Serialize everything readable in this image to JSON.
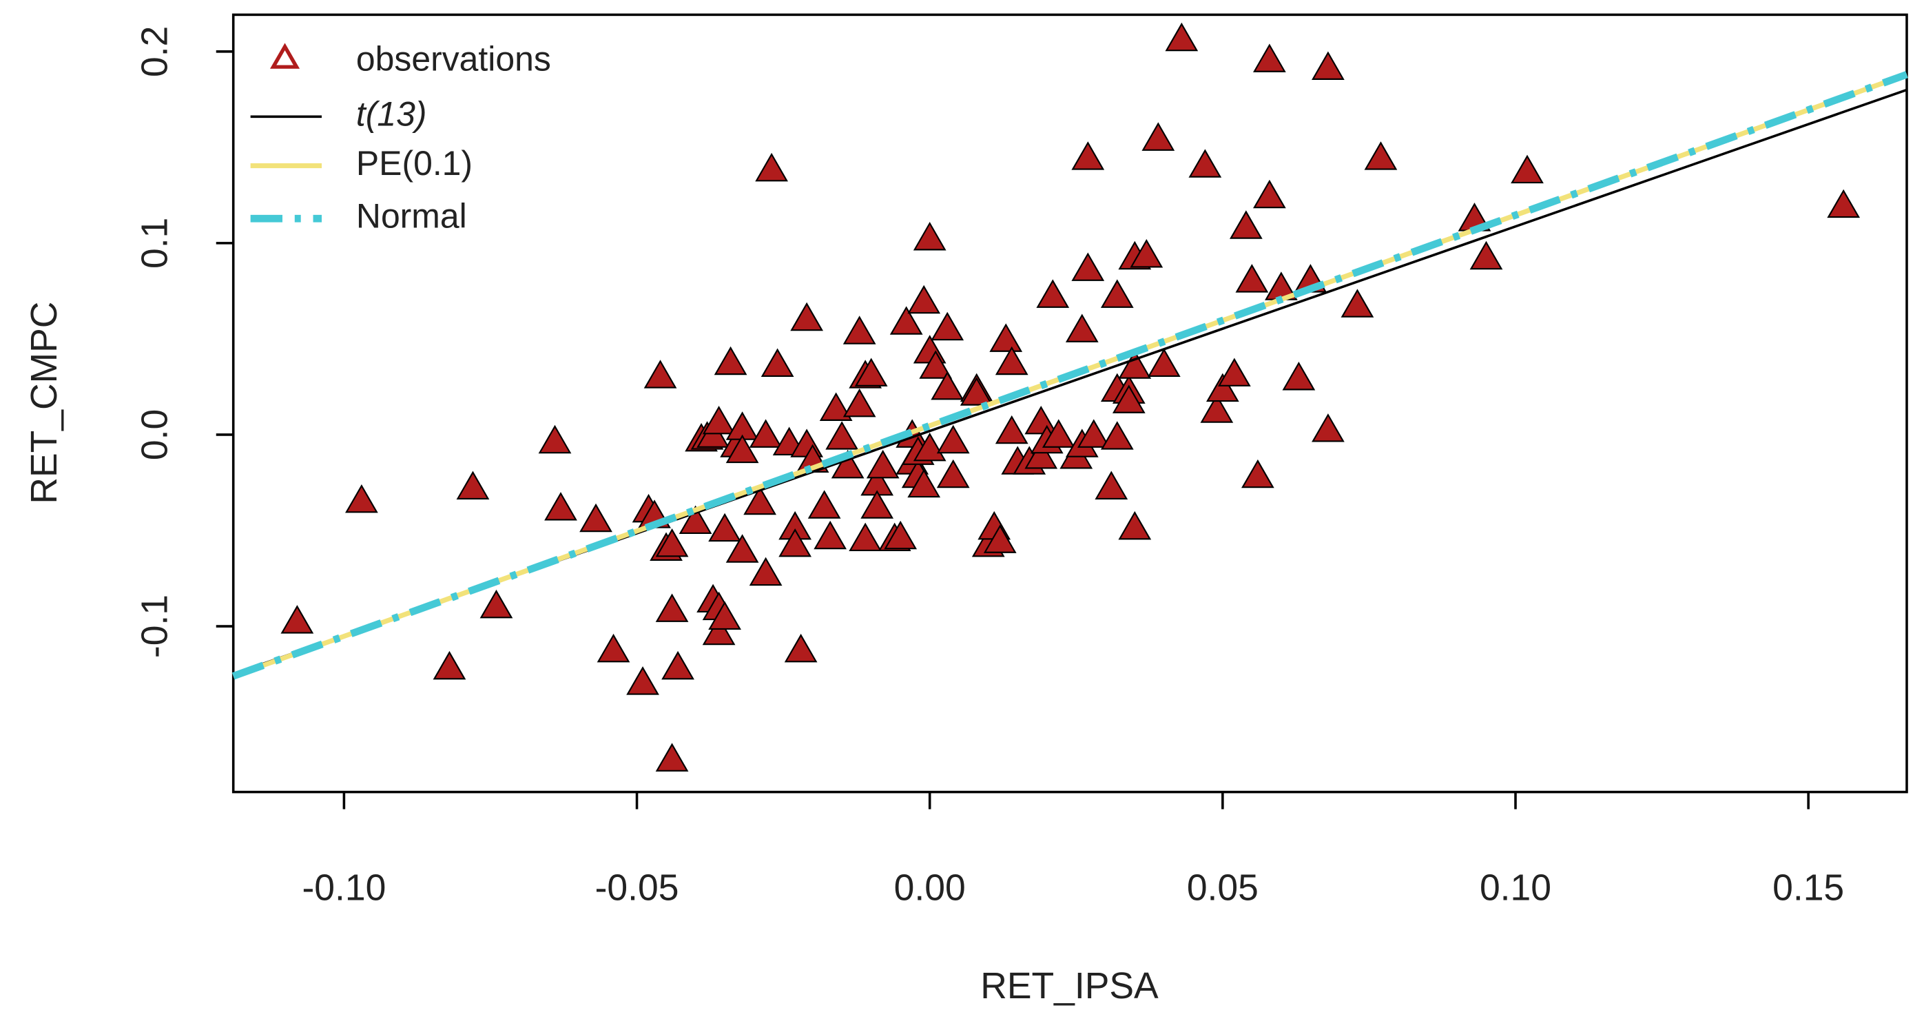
{
  "chart_data": {
    "type": "scatter",
    "xlabel": "RET_IPSA",
    "ylabel": "RET_CMPC",
    "xlim": [
      -0.1189,
      0.1668
    ],
    "ylim": [
      -0.1865,
      0.2192
    ],
    "xticks": [
      {
        "value": -0.1,
        "label": "-0.10"
      },
      {
        "value": -0.05,
        "label": "-0.05"
      },
      {
        "value": 0,
        "label": "0.00"
      },
      0.05,
      {
        "value": 0.1,
        "label": "0.10"
      },
      0.15
    ],
    "yticks": [
      -0.1,
      {
        "value": 0,
        "label": "0.0"
      },
      0.1,
      0.2
    ],
    "legend": "top-left",
    "series": [
      {
        "name": "observations",
        "type": "scatter",
        "color": "#b01c1c",
        "x": [
          -0.108,
          -0.097,
          -0.082,
          -0.078,
          -0.074,
          -0.064,
          -0.063,
          -0.057,
          -0.054,
          -0.049,
          -0.046,
          -0.048,
          -0.047,
          -0.045,
          -0.044,
          -0.044,
          -0.043,
          -0.044,
          -0.04,
          -0.039,
          -0.038,
          -0.037,
          -0.036,
          -0.036,
          -0.035,
          -0.037,
          -0.036,
          -0.035,
          -0.034,
          -0.033,
          -0.032,
          -0.032,
          -0.032,
          -0.028,
          -0.028,
          -0.027,
          -0.029,
          -0.026,
          -0.024,
          -0.023,
          -0.023,
          -0.022,
          -0.021,
          -0.021,
          -0.02,
          -0.018,
          -0.017,
          -0.016,
          -0.015,
          -0.014,
          -0.012,
          -0.011,
          -0.012,
          -0.011,
          -0.01,
          -0.009,
          -0.009,
          -0.008,
          -0.006,
          -0.005,
          -0.004,
          -0.003,
          -0.003,
          -0.002,
          -0.001,
          -0.002,
          -0.001,
          0.0,
          0.0,
          0.0,
          0.001,
          0.003,
          0.003,
          0.004,
          0.004,
          0.008,
          0.008,
          0.01,
          0.011,
          0.012,
          0.013,
          0.014,
          0.014,
          0.015,
          0.017,
          0.019,
          0.019,
          0.02,
          0.021,
          0.022,
          0.025,
          0.026,
          0.026,
          0.027,
          0.027,
          0.028,
          0.032,
          0.032,
          0.031,
          0.032,
          0.034,
          0.034,
          0.035,
          0.035,
          0.035,
          0.037,
          0.039,
          0.04,
          0.043,
          0.047,
          0.049,
          0.05,
          0.052,
          0.054,
          0.055,
          0.056,
          0.058,
          0.058,
          0.06,
          0.063,
          0.065,
          0.068,
          0.068,
          0.073,
          0.077,
          0.093,
          0.095,
          0.102,
          0.156
        ],
        "values": [
          -0.098,
          -0.035,
          -0.122,
          -0.028,
          -0.09,
          -0.004,
          -0.039,
          -0.045,
          -0.113,
          -0.13,
          0.03,
          -0.04,
          -0.043,
          -0.06,
          -0.058,
          -0.092,
          -0.122,
          -0.17,
          -0.046,
          -0.003,
          -0.002,
          -0.087,
          -0.091,
          -0.104,
          -0.096,
          -0.001,
          0.006,
          -0.05,
          0.037,
          -0.006,
          0.003,
          -0.009,
          -0.061,
          -0.001,
          -0.073,
          0.138,
          -0.036,
          0.036,
          -0.005,
          -0.049,
          -0.058,
          -0.113,
          -0.006,
          0.06,
          -0.014,
          -0.038,
          -0.054,
          0.013,
          -0.002,
          -0.017,
          0.053,
          0.03,
          0.015,
          -0.055,
          0.031,
          -0.026,
          -0.038,
          -0.017,
          -0.055,
          -0.054,
          0.058,
          -0.001,
          -0.015,
          -0.022,
          -0.027,
          -0.01,
          0.069,
          -0.008,
          0.043,
          0.102,
          0.035,
          0.055,
          0.024,
          -0.022,
          -0.004,
          0.023,
          0.021,
          -0.058,
          -0.049,
          -0.056,
          0.049,
          0.037,
          0.001,
          -0.015,
          -0.015,
          -0.012,
          0.006,
          -0.004,
          0.072,
          -0.001,
          -0.012,
          -0.006,
          0.054,
          0.086,
          0.144,
          -0.001,
          0.072,
          -0.002,
          -0.028,
          0.023,
          0.022,
          0.017,
          0.092,
          0.035,
          -0.049,
          0.093,
          0.154,
          0.036,
          0.206,
          0.14,
          0.012,
          0.023,
          0.031,
          0.108,
          0.08,
          -0.022,
          0.124,
          0.195,
          0.076,
          0.029,
          0.08,
          0.191,
          0.002,
          0.067,
          0.144,
          0.112,
          0.092,
          0.137,
          0.119
        ]
      },
      {
        "name": "t(13)",
        "type": "line",
        "color": "#000000",
        "x": [
          -0.1189,
          0.1668
        ],
        "values": [
          -0.125,
          0.18
        ]
      },
      {
        "name": "PE(0.1)",
        "type": "line",
        "color": "#f2e27a",
        "x": [
          -0.1189,
          0.1668
        ],
        "values": [
          -0.126,
          0.188
        ]
      },
      {
        "name": "Normal",
        "type": "line",
        "color": "#45c9d6",
        "dashed": true,
        "x": [
          -0.1189,
          0.1668
        ],
        "values": [
          -0.126,
          0.188
        ]
      }
    ]
  }
}
